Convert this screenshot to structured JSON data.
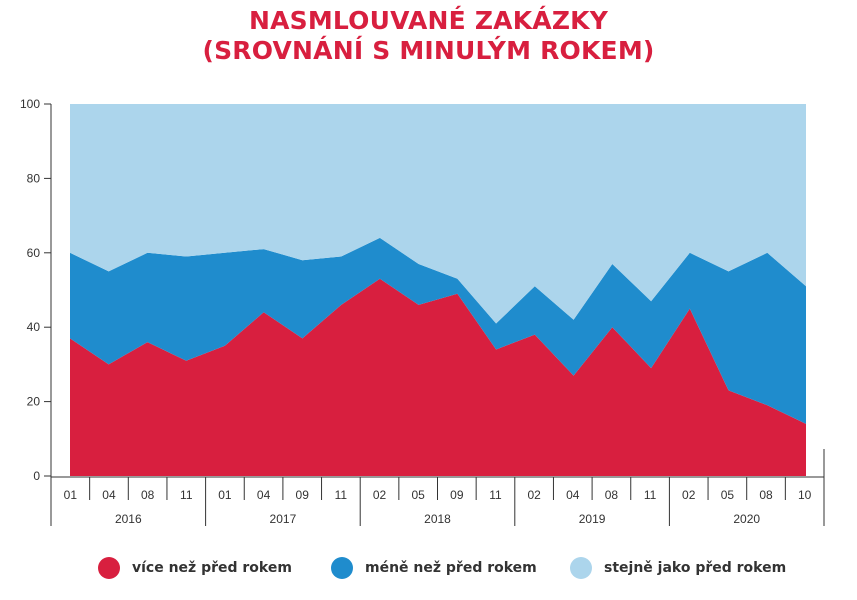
{
  "title_line1": "NASMLOUVANÉ ZAKÁZKY",
  "title_line2": "(SROVNÁNÍ S MINULÝM ROKEM)",
  "colors": {
    "more": "#d81f3f",
    "less": "#1f8ccd",
    "same": "#acd5ec",
    "title": "#d81f3f"
  },
  "legend": [
    {
      "label": "více než před rokem",
      "color": "#d81f3f"
    },
    {
      "label": "méně než před rokem",
      "color": "#1f8ccd"
    },
    {
      "label": "stejně jako před rokem",
      "color": "#acd5ec"
    }
  ],
  "chart_data": {
    "type": "area",
    "stacked": true,
    "ylim": [
      0,
      100
    ],
    "yticks": [
      0,
      20,
      40,
      60,
      80,
      100
    ],
    "categories": [
      "01",
      "04",
      "08",
      "11",
      "01",
      "04",
      "09",
      "11",
      "02",
      "05",
      "09",
      "11",
      "02",
      "04",
      "08",
      "11",
      "02",
      "05",
      "08",
      "10"
    ],
    "years": [
      {
        "label": "2016",
        "count": 4
      },
      {
        "label": "2017",
        "count": 4
      },
      {
        "label": "2018",
        "count": 4
      },
      {
        "label": "2019",
        "count": 4
      },
      {
        "label": "2020",
        "count": 4
      }
    ],
    "series": [
      {
        "name": "více než před rokem",
        "color": "#d81f3f",
        "values": [
          37,
          30,
          36,
          31,
          35,
          44,
          37,
          46,
          53,
          46,
          49,
          34,
          38,
          27,
          40,
          29,
          45,
          23,
          19,
          14
        ]
      },
      {
        "name": "méně než před rokem",
        "color": "#1f8ccd",
        "values": [
          23,
          25,
          24,
          28,
          25,
          17,
          21,
          13,
          11,
          11,
          4,
          7,
          13,
          15,
          17,
          18,
          15,
          32,
          41,
          37
        ]
      },
      {
        "name": "stejně jako před rokem",
        "color": "#acd5ec",
        "values": [
          40,
          45,
          40,
          41,
          40,
          39,
          42,
          41,
          36,
          43,
          47,
          59,
          49,
          58,
          43,
          53,
          40,
          45,
          40,
          49
        ]
      }
    ]
  }
}
